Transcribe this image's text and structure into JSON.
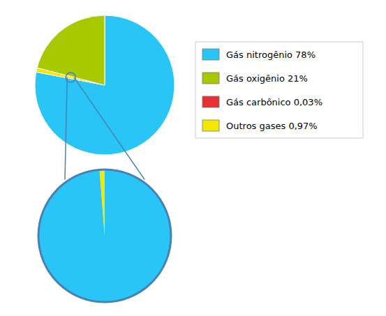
{
  "chart_data": [
    {
      "type": "pie",
      "categories": [
        "Gás nitrogênio 78%",
        null,
        "Gás oxigênio 21%"
      ],
      "values": [
        78,
        1,
        21
      ],
      "colors": [
        "#29c5f6",
        "#f5e800",
        "#a8c800"
      ],
      "legend": "right"
    },
    {
      "type": "pie",
      "categories": [
        null,
        "Gás carbônico 0,03%",
        "Outros gases 0,97%"
      ],
      "values": [
        78,
        0.03,
        0.97
      ],
      "colors": [
        "#29c5f6",
        "#e83030",
        "#f5e800"
      ]
    }
  ]
}
